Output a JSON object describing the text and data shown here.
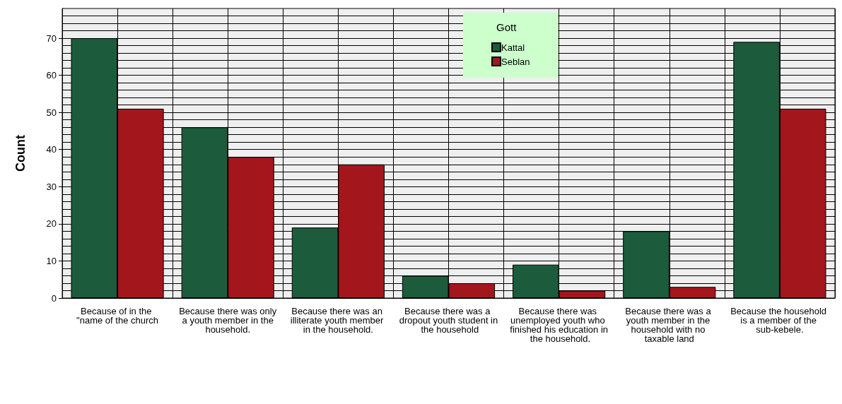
{
  "chart_data": {
    "type": "bar",
    "ylabel": "Count",
    "legend_title": "Gott",
    "legend": "top",
    "categories": [
      "Because of in the \"name of the church",
      "Because there was only a youth member in the household.",
      "Because there was an illiterate youth member in the household.",
      "Because there was a dropout youth student in the household",
      "Because there was unemployed youth who finished his education in the household.",
      "Because there was a youth member in the household with no taxable land",
      "Because the household is a member of the sub-kebele."
    ],
    "series": [
      {
        "name": "Kattal",
        "color": "#1c5c3c",
        "values": [
          70,
          46,
          19,
          6,
          9,
          18,
          69
        ]
      },
      {
        "name": "Seblan",
        "color": "#a3161c",
        "values": [
          51,
          38,
          36,
          4,
          2,
          3,
          51
        ]
      }
    ],
    "ylim": [
      0,
      78
    ],
    "yticks": [
      0,
      10,
      20,
      30,
      40,
      50,
      60,
      70
    ],
    "grid": true
  }
}
